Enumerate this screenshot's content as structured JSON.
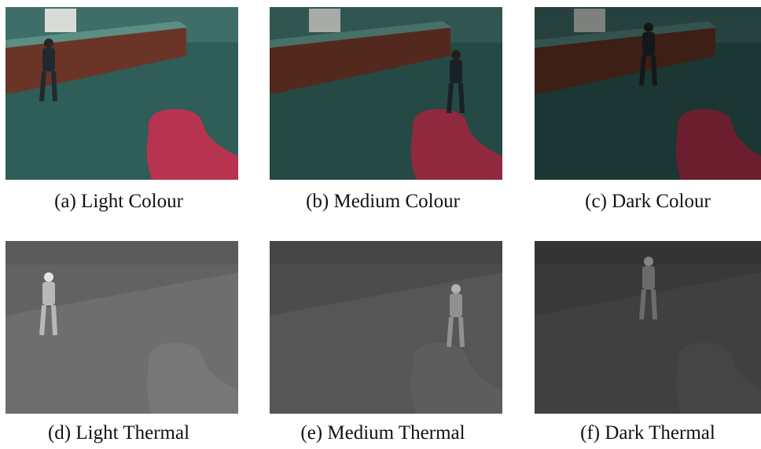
{
  "figure": {
    "panels": [
      {
        "caption": "(a) Light Colour"
      },
      {
        "caption": "(b) Medium Colour"
      },
      {
        "caption": "(c) Dark Colour"
      },
      {
        "caption": "(d) Light Thermal"
      },
      {
        "caption": "(e) Medium Thermal"
      },
      {
        "caption": "(f) Dark Thermal"
      }
    ]
  }
}
